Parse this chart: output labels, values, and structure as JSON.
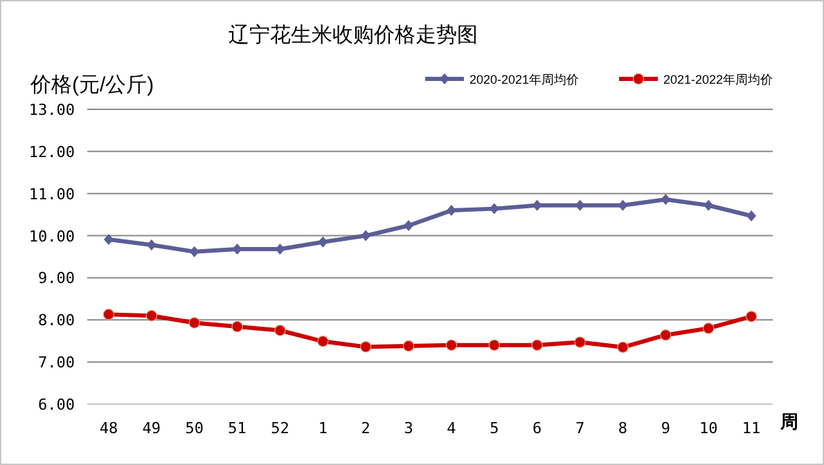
{
  "chart_data": {
    "type": "line",
    "title": "辽宁花生米收购价格走势图",
    "ylabel": "价格(元/公斤)",
    "xlabel": "周",
    "categories": [
      "48",
      "49",
      "50",
      "51",
      "52",
      "1",
      "2",
      "3",
      "4",
      "5",
      "6",
      "7",
      "8",
      "9",
      "10",
      "11"
    ],
    "series": [
      {
        "name": "2020-2021年周均价",
        "color": "#5b5e96",
        "marker": "diamond",
        "values": [
          9.91,
          9.78,
          9.62,
          9.68,
          9.68,
          9.85,
          10.0,
          10.24,
          10.6,
          10.64,
          10.72,
          10.72,
          10.72,
          10.86,
          10.72,
          10.47
        ]
      },
      {
        "name": "2021-2022年周均价",
        "color": "#cc0000",
        "marker": "circle",
        "values": [
          8.13,
          8.1,
          7.93,
          7.84,
          7.75,
          7.49,
          7.36,
          7.38,
          7.4,
          7.4,
          7.4,
          7.47,
          7.35,
          7.64,
          7.8,
          8.08
        ]
      }
    ],
    "ylim": [
      6,
      13
    ],
    "yticks": [
      {
        "value": 6,
        "label": "6.00"
      },
      {
        "value": 7,
        "label": "7.00"
      },
      {
        "value": 8,
        "label": "8.00"
      },
      {
        "value": 9,
        "label": "9.00"
      },
      {
        "value": 10,
        "label": "10.00"
      },
      {
        "value": 11,
        "label": "11.00"
      },
      {
        "value": 12,
        "label": "12.00"
      },
      {
        "value": 13,
        "label": "13.00"
      }
    ],
    "grid": "y",
    "legend": "top right"
  }
}
